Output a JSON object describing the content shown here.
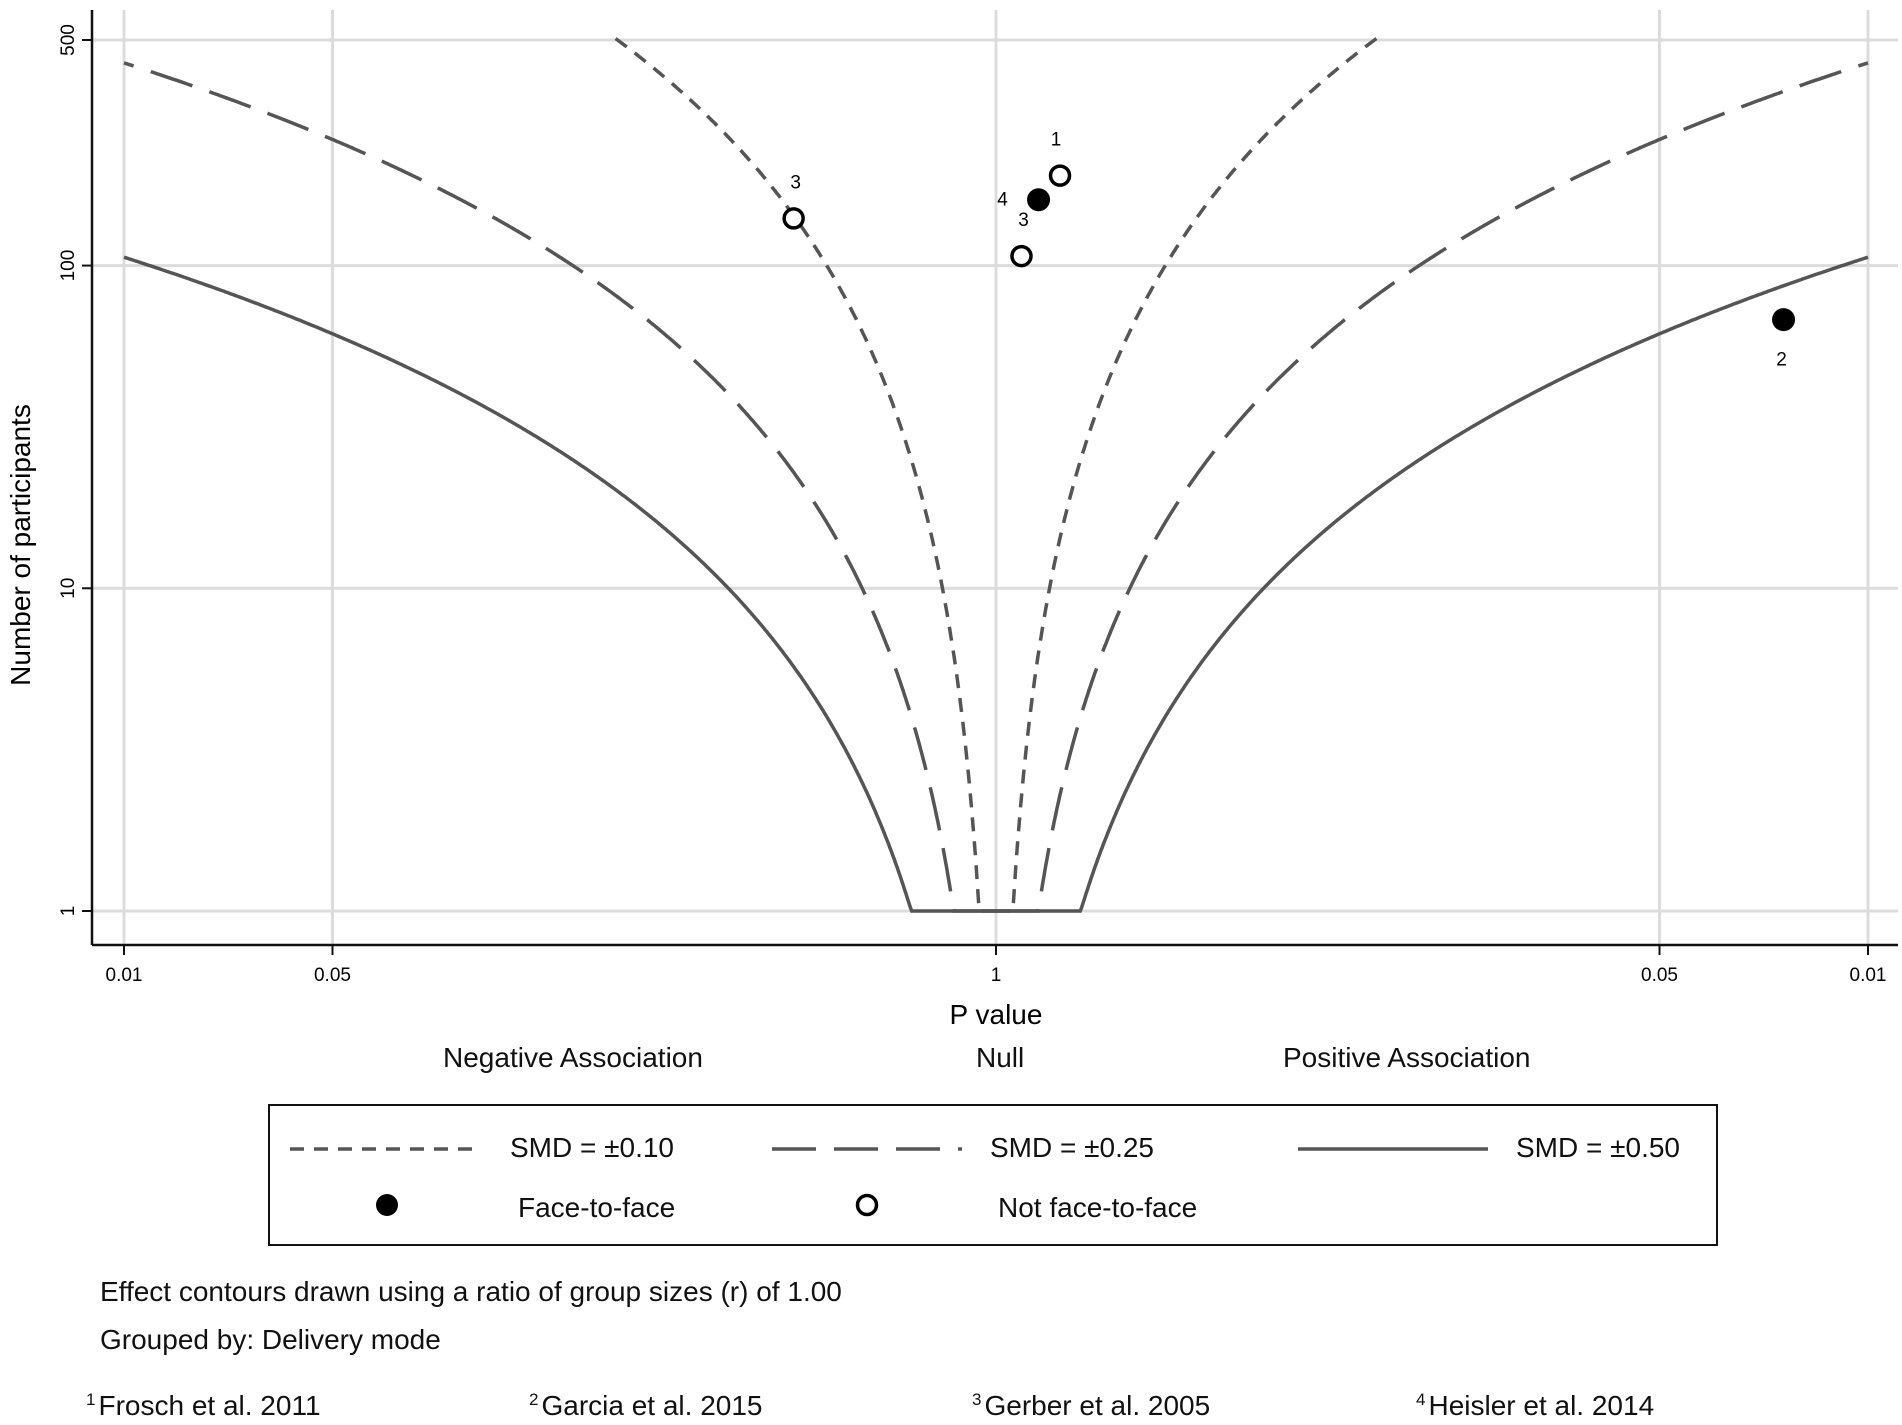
{
  "chart_data": {
    "type": "scatter",
    "title": "",
    "xlabel": "P value",
    "ylabel": "Number of participants",
    "x_axis": {
      "scale": "two-sided p value (negative | null | positive)",
      "tick_labels": [
        "0.01",
        "0.05",
        "1",
        "0.05",
        "0.01"
      ]
    },
    "y_axis": {
      "scale": "log",
      "tick_labels": [
        "1",
        "10",
        "100",
        "500"
      ],
      "ylim": [
        1,
        500
      ]
    },
    "region_labels": [
      "Negative Association",
      "Null",
      "Positive Association"
    ],
    "grid": true,
    "contours": [
      {
        "name": "SMD = ±0.10",
        "smd": 0.1,
        "style": "short-dash"
      },
      {
        "name": "SMD = ±0.25",
        "smd": 0.25,
        "style": "long-dash"
      },
      {
        "name": "SMD = ±0.50",
        "smd": 0.5,
        "style": "solid"
      }
    ],
    "series": [
      {
        "name": "Face-to-face",
        "marker": "filled-circle",
        "points": [
          {
            "label": "4",
            "direction": "positive",
            "p": 0.9,
            "n": 160
          },
          {
            "label": "2",
            "direction": "positive",
            "p": 0.02,
            "n": 68
          }
        ]
      },
      {
        "name": "Not face-to-face",
        "marker": "hollow-circle",
        "points": [
          {
            "label": "1",
            "direction": "positive",
            "p": 0.85,
            "n": 190
          },
          {
            "label": "3",
            "direction": "negative",
            "p": 0.55,
            "n": 140
          },
          {
            "label": "3",
            "direction": "positive",
            "p": 0.94,
            "n": 107
          }
        ]
      }
    ],
    "legend_position": "bottom"
  },
  "notes": [
    "Effect contours drawn using a ratio of group sizes (r) of 1.00",
    "Grouped by: Delivery mode"
  ],
  "references": [
    {
      "num": "1",
      "text": "Frosch et al. 2011"
    },
    {
      "num": "2",
      "text": "Garcia et al. 2015"
    },
    {
      "num": "3",
      "text": "Gerber et al. 2005"
    },
    {
      "num": "4",
      "text": "Heisler et al. 2014"
    }
  ],
  "colors": {
    "curve": "#555555",
    "grid": "#dcdcdc",
    "axis": "#111111",
    "marker": "#000000"
  }
}
